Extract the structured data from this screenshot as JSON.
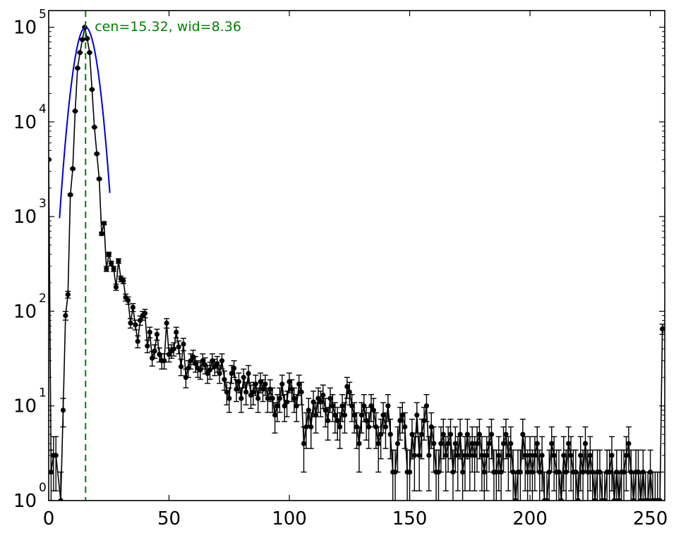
{
  "chart_data": {
    "type": "scatter",
    "title": "",
    "xlabel": "",
    "ylabel": "",
    "xlim": [
      0,
      256
    ],
    "ylim": [
      1,
      150000
    ],
    "yscale": "log",
    "grid": false,
    "legend": "none",
    "x_ticks": [
      {
        "value": 0,
        "label": "0"
      },
      {
        "value": 50,
        "label": "50"
      },
      {
        "value": 100,
        "label": "100"
      },
      {
        "value": 150,
        "label": "150"
      },
      {
        "value": 200,
        "label": "200"
      },
      {
        "value": 250,
        "label": "250"
      }
    ],
    "y_ticks": [
      {
        "value": 1,
        "base": "10",
        "exp": "0"
      },
      {
        "value": 10,
        "base": "10",
        "exp": "1"
      },
      {
        "value": 100,
        "base": "10",
        "exp": "2"
      },
      {
        "value": 1000,
        "base": "10",
        "exp": "3"
      },
      {
        "value": 10000,
        "base": "10",
        "exp": "4"
      },
      {
        "value": 100000,
        "base": "10",
        "exp": "5"
      }
    ],
    "annotation": {
      "text": "cen=15.32, wid=8.36",
      "x": 15.32,
      "color": "#008000"
    },
    "fit_color": "#0000cc",
    "data_color": "#000000",
    "points": [
      [
        0,
        4000
      ],
      [
        1,
        2
      ],
      [
        2,
        3
      ],
      [
        3,
        3
      ],
      [
        5,
        1
      ],
      [
        6,
        9
      ],
      [
        7,
        90
      ],
      [
        8,
        150
      ],
      [
        9,
        1700
      ],
      [
        10,
        3200
      ],
      [
        11,
        13000
      ],
      [
        12,
        37000
      ],
      [
        13,
        54000
      ],
      [
        14,
        74000
      ],
      [
        15,
        100000
      ],
      [
        16,
        76000
      ],
      [
        17,
        54000
      ],
      [
        18,
        22000
      ],
      [
        19,
        8800
      ],
      [
        20,
        4600
      ],
      [
        21,
        2500
      ],
      [
        22,
        660
      ],
      [
        23,
        850
      ],
      [
        24,
        280
      ],
      [
        25,
        400
      ],
      [
        26,
        320
      ],
      [
        27,
        280
      ],
      [
        28,
        180
      ],
      [
        29,
        340
      ],
      [
        30,
        220
      ],
      [
        31,
        210
      ],
      [
        32,
        140
      ],
      [
        33,
        130
      ],
      [
        34,
        75
      ],
      [
        35,
        110
      ],
      [
        36,
        72
      ],
      [
        37,
        48
      ],
      [
        38,
        80
      ],
      [
        39,
        90
      ],
      [
        40,
        95
      ],
      [
        41,
        43
      ],
      [
        42,
        60
      ],
      [
        43,
        32
      ],
      [
        44,
        38
      ],
      [
        45,
        57
      ],
      [
        46,
        35
      ],
      [
        47,
        30
      ],
      [
        48,
        30
      ],
      [
        49,
        75
      ],
      [
        50,
        35
      ],
      [
        51,
        38
      ],
      [
        52,
        40
      ],
      [
        53,
        60
      ],
      [
        54,
        42
      ],
      [
        55,
        26
      ],
      [
        56,
        45
      ],
      [
        57,
        20
      ],
      [
        58,
        25
      ],
      [
        59,
        30
      ],
      [
        60,
        33
      ],
      [
        61,
        28
      ],
      [
        62,
        25
      ],
      [
        63,
        24
      ],
      [
        64,
        30
      ],
      [
        65,
        27
      ],
      [
        66,
        22
      ],
      [
        67,
        24
      ],
      [
        68,
        30
      ],
      [
        69,
        26
      ],
      [
        70,
        28
      ],
      [
        71,
        22
      ],
      [
        72,
        30
      ],
      [
        73,
        19
      ],
      [
        74,
        14
      ],
      [
        75,
        12
      ],
      [
        76,
        22
      ],
      [
        77,
        25
      ],
      [
        78,
        15
      ],
      [
        79,
        18
      ],
      [
        80,
        12
      ],
      [
        81,
        20
      ],
      [
        82,
        14
      ],
      [
        83,
        22
      ],
      [
        84,
        13
      ],
      [
        85,
        14
      ],
      [
        86,
        17
      ],
      [
        87,
        12
      ],
      [
        88,
        18
      ],
      [
        89,
        15
      ],
      [
        90,
        17
      ],
      [
        91,
        12
      ],
      [
        92,
        15
      ],
      [
        93,
        12
      ],
      [
        94,
        8
      ],
      [
        95,
        10
      ],
      [
        96,
        12
      ],
      [
        97,
        17
      ],
      [
        98,
        10
      ],
      [
        99,
        11
      ],
      [
        100,
        18
      ],
      [
        101,
        15
      ],
      [
        102,
        12
      ],
      [
        103,
        10
      ],
      [
        104,
        17
      ],
      [
        105,
        14
      ],
      [
        106,
        4
      ],
      [
        107,
        6
      ],
      [
        108,
        9
      ],
      [
        109,
        6
      ],
      [
        110,
        11
      ],
      [
        111,
        8
      ],
      [
        112,
        12
      ],
      [
        113,
        11
      ],
      [
        114,
        13
      ],
      [
        115,
        9
      ],
      [
        116,
        7
      ],
      [
        117,
        12
      ],
      [
        118,
        10
      ],
      [
        119,
        8
      ],
      [
        120,
        7
      ],
      [
        121,
        6
      ],
      [
        122,
        10
      ],
      [
        123,
        8
      ],
      [
        124,
        16
      ],
      [
        125,
        14
      ],
      [
        126,
        10
      ],
      [
        127,
        8
      ],
      [
        128,
        6
      ],
      [
        129,
        4
      ],
      [
        130,
        8
      ],
      [
        131,
        10
      ],
      [
        132,
        7
      ],
      [
        133,
        6
      ],
      [
        134,
        10
      ],
      [
        135,
        9
      ],
      [
        136,
        6
      ],
      [
        137,
        4
      ],
      [
        138,
        5
      ],
      [
        139,
        8
      ],
      [
        140,
        6
      ],
      [
        141,
        10
      ],
      [
        142,
        5
      ],
      [
        143,
        2
      ],
      [
        144,
        2
      ],
      [
        145,
        4
      ],
      [
        146,
        7
      ],
      [
        147,
        8
      ],
      [
        148,
        6
      ],
      [
        149,
        2
      ],
      [
        150,
        2
      ],
      [
        151,
        5
      ],
      [
        152,
        3
      ],
      [
        153,
        8
      ],
      [
        154,
        3
      ],
      [
        155,
        5
      ],
      [
        156,
        7
      ],
      [
        157,
        10
      ],
      [
        158,
        3
      ],
      [
        159,
        6
      ],
      [
        160,
        4
      ],
      [
        161,
        2
      ],
      [
        162,
        2
      ],
      [
        163,
        4
      ],
      [
        164,
        5
      ],
      [
        165,
        3
      ],
      [
        166,
        4
      ],
      [
        167,
        5
      ],
      [
        168,
        2
      ],
      [
        169,
        4
      ],
      [
        170,
        3
      ],
      [
        171,
        5
      ],
      [
        172,
        2
      ],
      [
        173,
        3
      ],
      [
        174,
        5
      ],
      [
        175,
        3
      ],
      [
        176,
        4
      ],
      [
        177,
        3
      ],
      [
        178,
        4
      ],
      [
        179,
        5
      ],
      [
        180,
        3
      ],
      [
        181,
        2
      ],
      [
        182,
        3
      ],
      [
        183,
        4
      ],
      [
        184,
        5
      ],
      [
        185,
        2
      ],
      [
        186,
        2
      ],
      [
        187,
        3
      ],
      [
        188,
        2
      ],
      [
        189,
        4
      ],
      [
        190,
        5
      ],
      [
        191,
        3
      ],
      [
        192,
        4
      ],
      [
        193,
        2
      ],
      [
        194,
        1
      ],
      [
        195,
        2
      ],
      [
        196,
        2
      ],
      [
        197,
        5
      ],
      [
        198,
        3
      ],
      [
        199,
        2
      ],
      [
        200,
        3
      ],
      [
        201,
        2
      ],
      [
        202,
        3
      ],
      [
        203,
        4
      ],
      [
        204,
        2
      ],
      [
        205,
        3
      ],
      [
        206,
        1
      ],
      [
        207,
        1
      ],
      [
        208,
        2
      ],
      [
        209,
        4
      ],
      [
        210,
        3
      ],
      [
        211,
        2
      ],
      [
        212,
        2
      ],
      [
        213,
        1
      ],
      [
        214,
        3
      ],
      [
        215,
        2
      ],
      [
        216,
        4
      ],
      [
        217,
        3
      ],
      [
        218,
        2
      ],
      [
        219,
        2
      ],
      [
        220,
        1
      ],
      [
        221,
        3
      ],
      [
        222,
        2
      ],
      [
        223,
        4
      ],
      [
        224,
        2
      ],
      [
        225,
        3
      ],
      [
        226,
        2
      ],
      [
        227,
        1
      ],
      [
        228,
        2
      ],
      [
        229,
        2
      ],
      [
        230,
        1
      ],
      [
        231,
        1
      ],
      [
        232,
        2
      ],
      [
        233,
        2
      ],
      [
        234,
        3
      ],
      [
        235,
        1
      ],
      [
        236,
        2
      ],
      [
        237,
        1
      ],
      [
        238,
        2
      ],
      [
        239,
        2
      ],
      [
        240,
        3
      ],
      [
        241,
        4
      ],
      [
        242,
        2
      ],
      [
        243,
        1
      ],
      [
        244,
        2
      ],
      [
        245,
        2
      ],
      [
        246,
        1
      ],
      [
        247,
        2
      ],
      [
        248,
        1
      ],
      [
        249,
        1
      ],
      [
        250,
        2
      ],
      [
        251,
        1
      ],
      [
        252,
        1
      ],
      [
        253,
        1
      ],
      [
        254,
        1
      ],
      [
        255,
        65
      ]
    ],
    "fit": {
      "x_start": 4.5,
      "x_end": 25.5
    }
  }
}
